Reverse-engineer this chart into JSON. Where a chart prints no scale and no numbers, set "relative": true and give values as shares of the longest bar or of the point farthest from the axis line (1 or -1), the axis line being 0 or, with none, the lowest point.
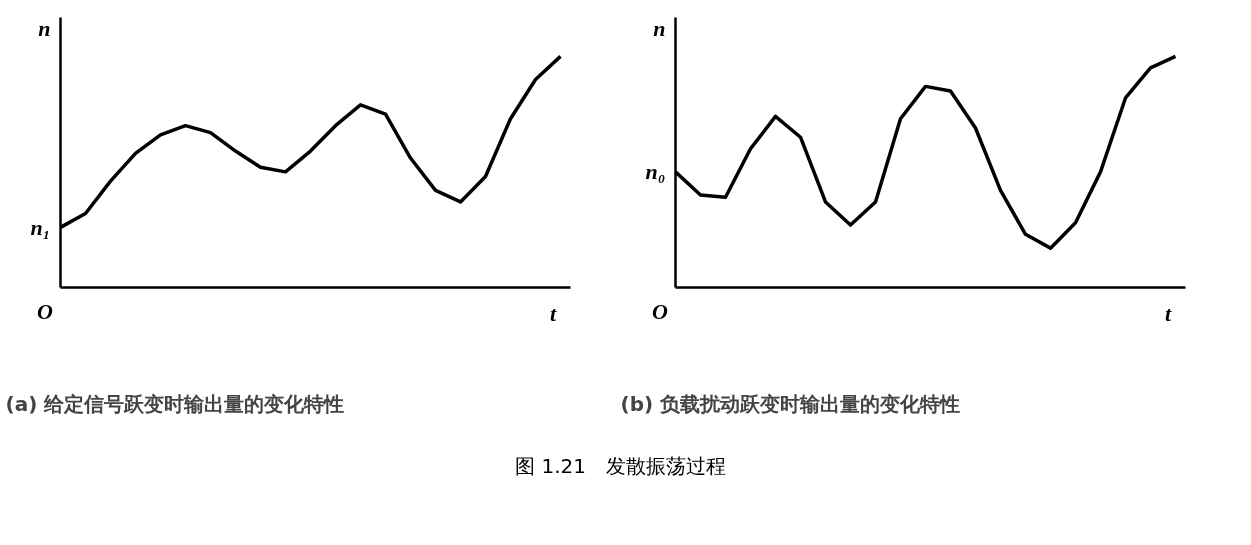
{
  "chart_data": [
    {
      "type": "line",
      "subtitle": "(a) 给定信号跃变时输出量的变化特性",
      "xlabel": "t",
      "ylabel": "n",
      "relative": true,
      "legend": false,
      "marker": "none",
      "line_style": "solid",
      "categories": [
        null,
        null,
        null,
        null,
        null,
        null,
        null,
        null,
        null,
        null,
        null,
        null,
        null,
        null,
        null,
        null,
        null,
        null,
        null,
        null,
        null
      ],
      "series": [
        {
          "color": "#000000",
          "values": [
            0.26,
            0.32,
            0.46,
            0.58,
            0.66,
            0.7,
            0.67,
            0.59,
            0.52,
            0.5,
            0.59,
            0.7,
            0.79,
            0.75,
            0.56,
            0.42,
            0.37,
            0.48,
            0.73,
            0.9,
            1
          ]
        }
      ],
      "annotations": [
        "O",
        "n₁"
      ]
    },
    {
      "type": "line",
      "subtitle": "(b) 负载扰动跃变时输出量的变化特性",
      "xlabel": "t",
      "ylabel": "n",
      "relative": true,
      "legend": false,
      "marker": "none",
      "line_style": "solid",
      "categories": [
        null,
        null,
        null,
        null,
        null,
        null,
        null,
        null,
        null,
        null,
        null,
        null,
        null,
        null,
        null,
        null,
        null,
        null,
        null,
        null,
        null
      ],
      "series": [
        {
          "color": "#000000",
          "values": [
            0.5,
            0.4,
            0.39,
            0.6,
            0.74,
            0.65,
            0.37,
            0.27,
            0.37,
            0.73,
            0.87,
            0.85,
            0.69,
            0.42,
            0.23,
            0.17,
            0.28,
            0.5,
            0.82,
            0.95,
            1
          ]
        }
      ],
      "annotations": [
        "O",
        "n₀"
      ]
    },
    {
      "type": "other",
      "title": "图 1.21　发散振荡过程"
    }
  ]
}
